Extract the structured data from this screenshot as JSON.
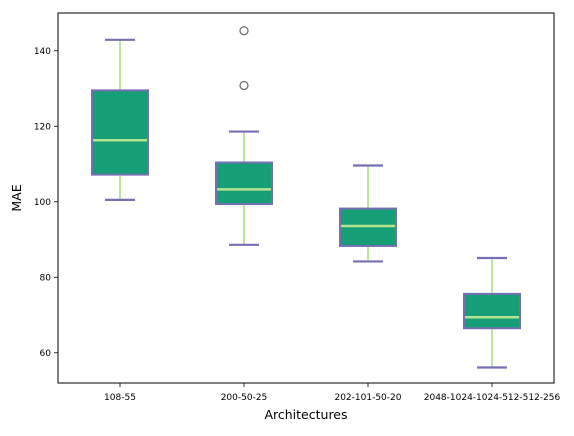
{
  "chart_data": {
    "type": "box",
    "xlabel": "Architectures",
    "ylabel": "MAE",
    "ylim": [
      52,
      150
    ],
    "yticks": [
      60,
      80,
      100,
      120,
      140
    ],
    "grid": false,
    "categories": [
      "108-55",
      "200-50-25",
      "202-101-50-20",
      "2048-1024-1024-512-512-256"
    ],
    "boxes": [
      {
        "category": "108-55",
        "whisker_low": 100.5,
        "q1": 107.2,
        "median": 116.3,
        "q3": 129.5,
        "whisker_high": 142.9,
        "outliers": []
      },
      {
        "category": "200-50-25",
        "whisker_low": 88.6,
        "q1": 99.4,
        "median": 103.3,
        "q3": 110.4,
        "whisker_high": 118.6,
        "outliers": [
          130.8,
          145.3
        ]
      },
      {
        "category": "202-101-50-20",
        "whisker_low": 84.2,
        "q1": 88.3,
        "median": 93.6,
        "q3": 98.2,
        "whisker_high": 109.6,
        "outliers": []
      },
      {
        "category": "2048-1024-1024-512-512-256",
        "whisker_low": 56.1,
        "q1": 66.5,
        "median": 69.4,
        "q3": 75.6,
        "whisker_high": 85.1,
        "outliers": []
      }
    ],
    "colors": {
      "box_fill": "#169e76",
      "box_edge": "#7570b3",
      "median": "#b5e38f",
      "whisker": "#a6dd7b",
      "cap": "#7570b3",
      "outlier_edge": "#6b6b6b"
    }
  }
}
